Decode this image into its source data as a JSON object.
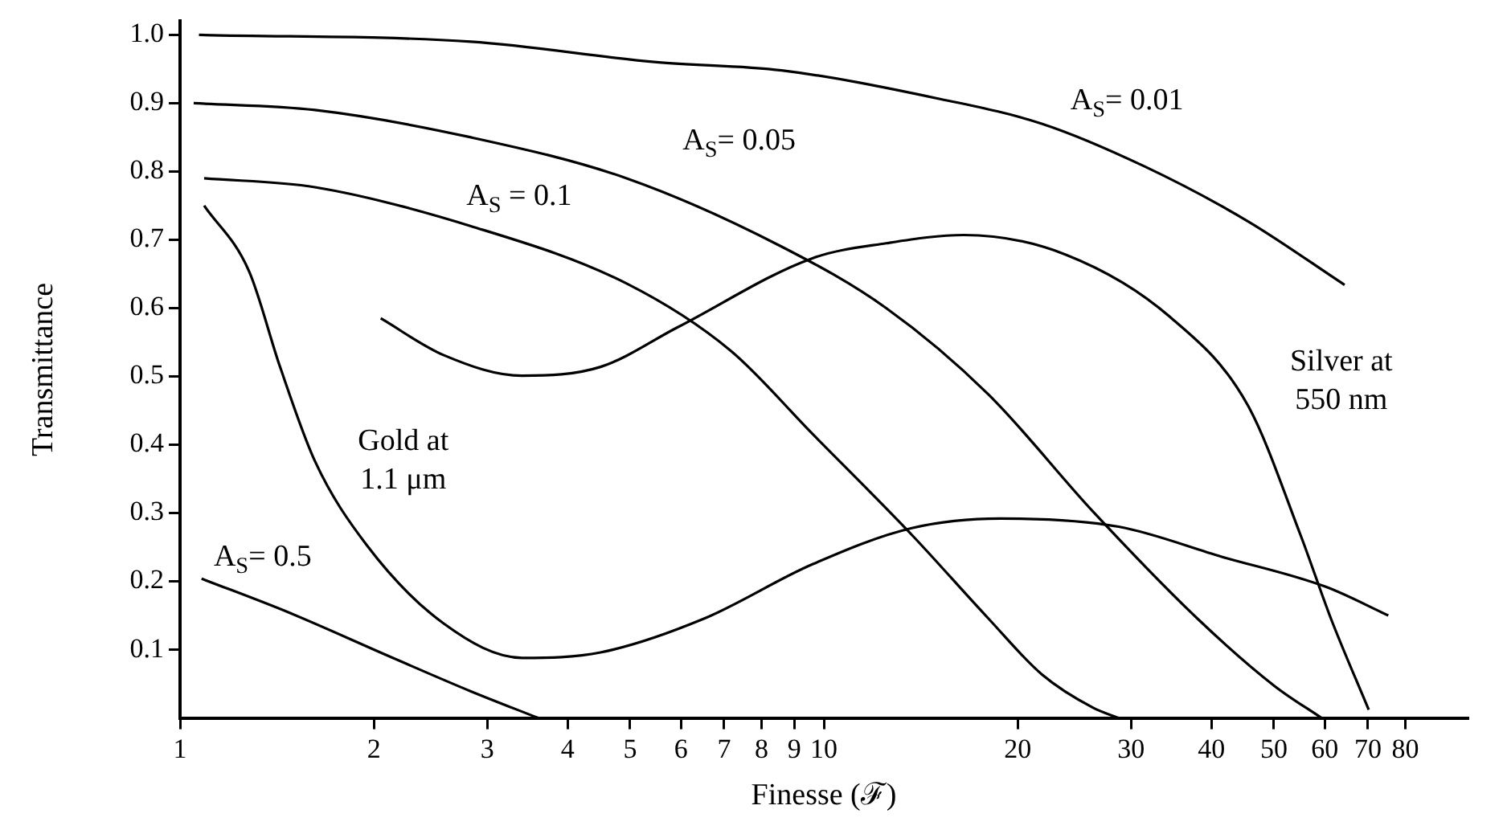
{
  "chart_data": {
    "type": "line",
    "xlabel": "Finesse (ℱ)",
    "ylabel": "Transmittance",
    "log": "x",
    "xlim": [
      1,
      100
    ],
    "xticks": [
      1,
      2,
      3,
      4,
      5,
      6,
      7,
      8,
      9,
      10,
      20,
      30,
      40,
      50,
      60,
      70,
      80
    ],
    "ylim": [
      0,
      1.02
    ],
    "yticks": [
      0.1,
      0.2,
      0.3,
      0.4,
      0.5,
      0.6,
      0.7,
      0.8,
      0.9,
      {
        "value": 1,
        "label": "1.0"
      }
    ],
    "series": [
      {
        "name": "A$_{S}$= 0.01",
        "color": "#000000",
        "x": [
          1.07,
          2.83,
          5.5,
          8.6,
          15.0,
          21.8,
          31.4,
          45.6,
          64.4
        ],
        "values": [
          1.0,
          0.99,
          0.96,
          0.948,
          0.907,
          0.87,
          0.808,
          0.727,
          0.634
        ]
      },
      {
        "name": "A$_{S}$= 0.05",
        "color": "#000000",
        "x": [
          1.05,
          1.62,
          2.83,
          4.94,
          8.6,
          12.5,
          18.0,
          26.2,
          38.0,
          50.1,
          59.3
        ],
        "values": [
          0.9,
          0.89,
          0.85,
          0.79,
          0.69,
          0.6,
          0.474,
          0.302,
          0.146,
          0.047,
          0
        ]
      },
      {
        "name": "A$_{S}$ = 0.1",
        "color": "#000000",
        "x": [
          1.09,
          1.62,
          2.83,
          4.94,
          7.16,
          9.6,
          13.7,
          18.0,
          21.8,
          26.2,
          28.7
        ],
        "values": [
          0.79,
          0.777,
          0.72,
          0.636,
          0.538,
          0.416,
          0.268,
          0.146,
          0.064,
          0.015,
          0
        ]
      },
      {
        "name": "A$_{S}$= 0.5",
        "color": "#000000",
        "x": [
          1.08,
          1.47,
          2.14,
          2.83,
          3.6
        ],
        "values": [
          0.204,
          0.155,
          0.088,
          0.039,
          0
        ]
      },
      {
        "name": "Gold at 1.1 μm",
        "color": "#000000",
        "x": [
          1.09,
          1.28,
          1.43,
          1.62,
          1.95,
          2.57,
          3.4,
          4.5,
          6.5,
          9.6,
          13.7,
          18.8,
          28.7,
          41.5,
          60.2,
          75.3
        ],
        "values": [
          0.75,
          0.654,
          0.514,
          0.376,
          0.253,
          0.138,
          0.088,
          0.096,
          0.145,
          0.225,
          0.278,
          0.292,
          0.28,
          0.236,
          0.192,
          0.15
        ]
      },
      {
        "name": "Silver at 550 nm",
        "color": "#000000",
        "x": [
          2.05,
          2.57,
          3.4,
          4.5,
          5.93,
          9.6,
          12.5,
          16.5,
          23.8,
          34.5,
          45.6,
          55.0,
          61.3,
          70.2
        ],
        "values": [
          0.585,
          0.531,
          0.501,
          0.514,
          0.572,
          0.673,
          0.695,
          0.707,
          0.678,
          0.587,
          0.457,
          0.268,
          0.146,
          0.012
        ]
      }
    ]
  }
}
